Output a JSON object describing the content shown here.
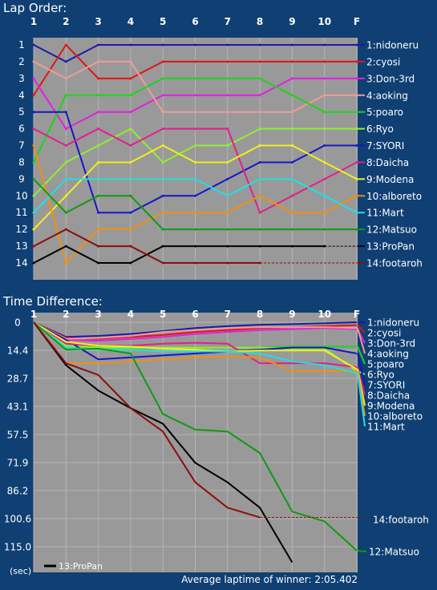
{
  "chart_data": [
    {
      "type": "line",
      "title": "Lap Order:",
      "x": [
        "1",
        "2",
        "3",
        "4",
        "5",
        "6",
        "7",
        "8",
        "9",
        "10",
        "F"
      ],
      "y_ticks": [
        1,
        2,
        3,
        4,
        5,
        6,
        7,
        8,
        9,
        10,
        11,
        12,
        13,
        14
      ],
      "y_inverted": true,
      "grid": true,
      "legend": "right",
      "series": [
        {
          "name": "1:nidoneru",
          "color": "#1a1aa6",
          "values": [
            1,
            2,
            1,
            1,
            1,
            1,
            1,
            1,
            1,
            1,
            1
          ]
        },
        {
          "name": "2:cyosi",
          "color": "#e01515",
          "values": [
            4,
            1,
            3,
            3,
            2,
            2,
            2,
            2,
            2,
            2,
            2
          ]
        },
        {
          "name": "3:Don-3rd",
          "color": "#e020e0",
          "values": [
            3,
            6,
            5,
            5,
            4,
            4,
            4,
            4,
            3,
            3,
            3
          ]
        },
        {
          "name": "4:aoking",
          "color": "#f09a9a",
          "values": [
            2,
            3,
            2,
            2,
            5,
            5,
            5,
            5,
            5,
            4,
            4
          ]
        },
        {
          "name": "5:poaro",
          "color": "#1ed41e",
          "values": [
            8,
            4,
            4,
            4,
            3,
            3,
            3,
            3,
            4,
            5,
            5
          ]
        },
        {
          "name": "6:Ryo",
          "color": "#90f030",
          "values": [
            10,
            8,
            7,
            6,
            8,
            7,
            7,
            6,
            6,
            6,
            6
          ]
        },
        {
          "name": "7:SYORI",
          "color": "#1616c8",
          "values": [
            5,
            5,
            11,
            11,
            10,
            10,
            9,
            8,
            8,
            7,
            7
          ]
        },
        {
          "name": "8:Daicha",
          "color": "#e0208a",
          "values": [
            6,
            7,
            6,
            7,
            6,
            6,
            6,
            11,
            10,
            9,
            8
          ]
        },
        {
          "name": "9:Modena",
          "color": "#f0f020",
          "values": [
            12,
            10,
            8,
            8,
            7,
            8,
            8,
            7,
            7,
            8,
            9
          ]
        },
        {
          "name": "10:alboreto",
          "color": "#f09010",
          "values": [
            7,
            14,
            12,
            12,
            11,
            11,
            11,
            10,
            11,
            11,
            10
          ]
        },
        {
          "name": "11:Mart",
          "color": "#20e0e0",
          "values": [
            11,
            9,
            9,
            9,
            9,
            9,
            10,
            9,
            9,
            10,
            11
          ]
        },
        {
          "name": "12:Matsuo",
          "color": "#109a10",
          "values": [
            9,
            11,
            10,
            10,
            12,
            12,
            12,
            12,
            12,
            12,
            12
          ]
        },
        {
          "name": "13:ProPan",
          "color": "#000000",
          "values": [
            14,
            13,
            14,
            14,
            13,
            13,
            13,
            13,
            13,
            13,
            null
          ]
        },
        {
          "name": "14:footaroh",
          "color": "#8b0d0d",
          "values": [
            13,
            12,
            13,
            13,
            14,
            14,
            14,
            14,
            null,
            null,
            null
          ]
        }
      ]
    },
    {
      "type": "line",
      "title": "Time Difference:",
      "x": [
        "1",
        "2",
        "3",
        "4",
        "5",
        "6",
        "7",
        "8",
        "9",
        "10",
        "F"
      ],
      "y_ticks": [
        "0",
        "14.4",
        "28.7",
        "43.1",
        "57.5",
        "71.9",
        "86.2",
        "100.6",
        "115.0"
      ],
      "ylim": [
        0,
        115.0
      ],
      "y_inverted": true,
      "unit_label": "(sec)",
      "footer": "Average laptime of winner: 2:05.402",
      "legend": "right",
      "inset_legend": "13:ProPan",
      "series": [
        {
          "name": "1:nidoneru",
          "color": "#1a1aa6",
          "values": [
            0,
            7.5,
            7,
            6,
            4.5,
            3,
            2,
            1.3,
            1,
            0.5,
            0
          ]
        },
        {
          "name": "2:cyosi",
          "color": "#e01515",
          "values": [
            0,
            8,
            8.5,
            7.5,
            6.5,
            5,
            4,
            3,
            2.5,
            2,
            1.5
          ]
        },
        {
          "name": "3:Don-3rd",
          "color": "#e020e0",
          "values": [
            0,
            9,
            9.5,
            8.5,
            7.5,
            6,
            5,
            4,
            3.5,
            3,
            3.5
          ]
        },
        {
          "name": "4:aoking",
          "color": "#f09a9a",
          "values": [
            0,
            8.5,
            8,
            7,
            5,
            4,
            3,
            2.5,
            2.5,
            2.5,
            3
          ]
        },
        {
          "name": "5:poaro",
          "color": "#1ed41e",
          "values": [
            0,
            13,
            13,
            13.5,
            13,
            13,
            13,
            13,
            12.5,
            12.5,
            12.5
          ]
        },
        {
          "name": "6:Ryo",
          "color": "#90f030",
          "values": [
            0,
            12,
            13,
            13,
            13,
            13,
            13,
            13,
            13.5,
            13.5,
            25
          ]
        },
        {
          "name": "7:SYORI",
          "color": "#1616c8",
          "values": [
            0,
            9,
            19,
            18,
            17,
            16,
            15,
            14,
            13,
            13,
            16
          ]
        },
        {
          "name": "8:Daicha",
          "color": "#e0208a",
          "values": [
            0,
            11,
            12,
            12,
            11,
            10.5,
            11,
            21,
            21,
            21,
            23
          ]
        },
        {
          "name": "9:Modena",
          "color": "#f0f020",
          "values": [
            0,
            10,
            12,
            12.5,
            13.5,
            14,
            15,
            14.5,
            14.5,
            14.5,
            24
          ]
        },
        {
          "name": "10:alboreto",
          "color": "#f09010",
          "values": [
            0,
            21,
            21,
            20,
            19,
            18,
            17.5,
            18,
            25,
            25,
            25
          ]
        },
        {
          "name": "11:Mart",
          "color": "#20e0e0",
          "values": [
            0,
            13,
            14,
            14,
            15,
            15,
            15,
            16,
            20,
            22,
            26
          ]
        },
        {
          "name": "12:Matsuo",
          "color": "#109a10",
          "values": [
            0,
            14,
            13.5,
            16,
            47,
            55,
            56,
            67,
            97,
            102,
            117
          ]
        },
        {
          "name": "13:ProPan",
          "color": "#000000",
          "values": [
            0,
            22,
            35,
            44,
            52,
            72,
            82,
            95,
            123,
            null,
            null
          ]
        },
        {
          "name": "14:footaroh",
          "color": "#8b0d0d",
          "values": [
            0,
            21,
            27,
            44,
            56,
            82,
            95,
            100,
            null,
            null,
            null
          ]
        }
      ],
      "right_labels": [
        "1:nidoneru",
        "2:cyosi",
        "3:Don-3rd",
        "4:aoking",
        "5:poaro",
        "6:Ryo",
        "7:SYORI",
        "8:Daicha",
        "9:Modena",
        "10:alboreto",
        "11:Mart",
        "14:footaroh",
        "12:Matsuo"
      ]
    }
  ]
}
